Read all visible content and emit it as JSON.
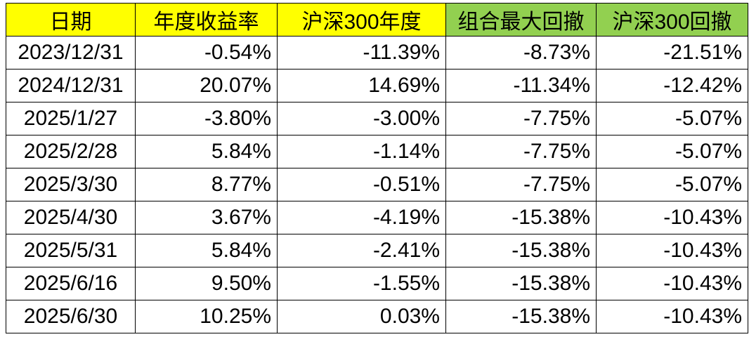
{
  "table": {
    "header": [
      "日期",
      "年度收益率",
      "沪深300年度",
      "组合最大回撤",
      "沪深300回撤"
    ],
    "rows": [
      [
        "2023/12/31",
        "-0.54%",
        "-11.39%",
        "-8.73%",
        "-21.51%"
      ],
      [
        "2024/12/31",
        "20.07%",
        "14.69%",
        "-11.34%",
        "-12.42%"
      ],
      [
        "2025/1/27",
        "-3.80%",
        "-3.00%",
        "-7.75%",
        "-5.07%"
      ],
      [
        "2025/2/28",
        "5.84%",
        "-1.14%",
        "-7.75%",
        "-5.07%"
      ],
      [
        "2025/3/30",
        "8.77%",
        "-0.51%",
        "-7.75%",
        "-5.07%"
      ],
      [
        "2025/4/30",
        "3.67%",
        "-4.19%",
        "-15.38%",
        "-10.43%"
      ],
      [
        "2025/5/31",
        "5.84%",
        "-2.41%",
        "-15.38%",
        "-10.43%"
      ],
      [
        "2025/6/16",
        "9.50%",
        "-1.55%",
        "-15.38%",
        "-10.43%"
      ],
      [
        "2025/6/30",
        "10.25%",
        "0.03%",
        "-15.38%",
        "-10.43%"
      ]
    ]
  }
}
